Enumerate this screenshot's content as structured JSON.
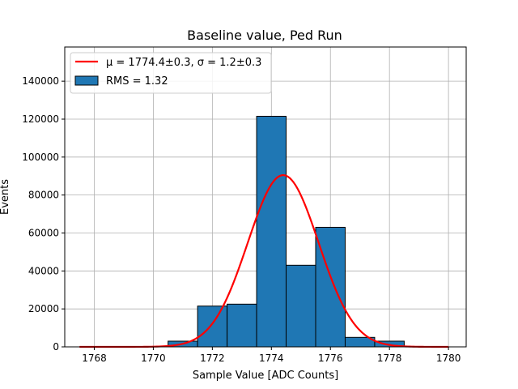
{
  "chart_data": {
    "type": "bar",
    "title": "Baseline value, Ped Run",
    "xlabel": "Sample Value [ADC Counts]",
    "ylabel": "Events",
    "xlim": [
      1767.0,
      1780.6
    ],
    "ylim": [
      0,
      158000
    ],
    "x_ticks": [
      1768,
      1770,
      1772,
      1774,
      1776,
      1778,
      1780
    ],
    "y_ticks": [
      0,
      20000,
      40000,
      60000,
      80000,
      100000,
      120000,
      140000
    ],
    "grid": true,
    "legend_position": "top-left",
    "bins": [
      {
        "x0": 1770.5,
        "x1": 1771.5,
        "value": 3000
      },
      {
        "x0": 1771.5,
        "x1": 1772.5,
        "value": 21500
      },
      {
        "x0": 1772.5,
        "x1": 1773.5,
        "value": 22500
      },
      {
        "x0": 1773.5,
        "x1": 1774.5,
        "value": 121500
      },
      {
        "x0": 1774.5,
        "x1": 1775.5,
        "value": 43000
      },
      {
        "x0": 1775.5,
        "x1": 1776.5,
        "value": 63000
      },
      {
        "x0": 1776.5,
        "x1": 1777.5,
        "value": 5000
      },
      {
        "x0": 1777.5,
        "x1": 1778.5,
        "value": 3000
      }
    ],
    "fit": {
      "type": "gaussian",
      "mu": 1774.4,
      "sigma": 1.2,
      "amplitude": 90500,
      "x_range": [
        1767.5,
        1780.0
      ],
      "color": "#ff0000"
    },
    "bar_color": "#1f77b4",
    "legend": {
      "fit_label": "μ = 1774.4±0.3, σ = 1.2±0.3",
      "hist_label": "RMS = 1.32"
    }
  }
}
